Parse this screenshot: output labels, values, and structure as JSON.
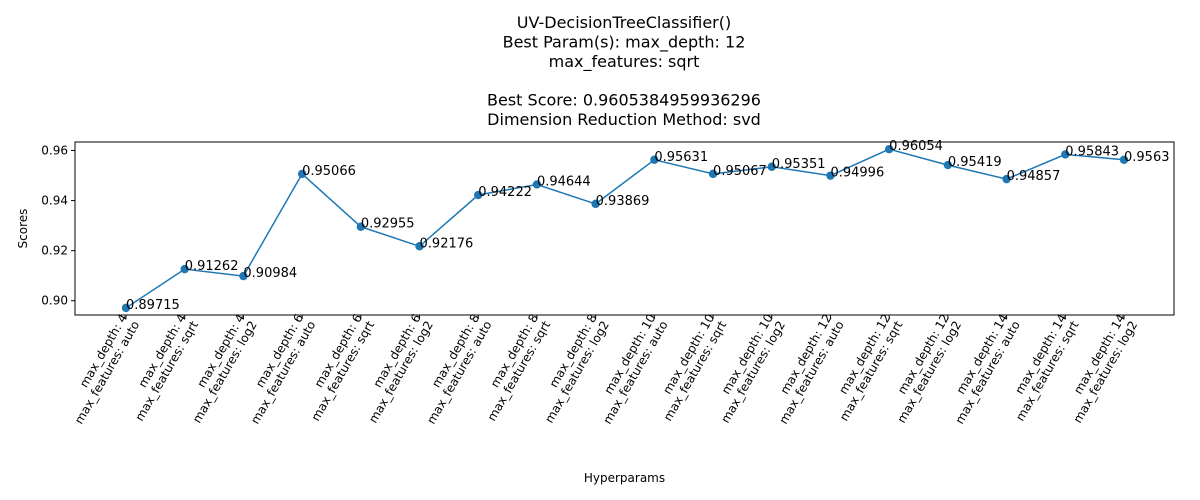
{
  "chart_data": {
    "type": "line",
    "title_lines": [
      "UV-DecisionTreeClassifier()",
      "Best Param(s): max_depth: 12",
      "max_features: sqrt",
      "",
      "Best Score: 0.9605384959936296",
      "Dimension Reduction Method: svd"
    ],
    "xlabel": "Hyperparams",
    "ylabel": "Scores",
    "categories": [
      [
        "max_depth: 4",
        "max_features: auto"
      ],
      [
        "max_depth: 4",
        "max_features: sqrt"
      ],
      [
        "max_depth: 4",
        "max_features: log2"
      ],
      [
        "max_depth: 6",
        "max_features: auto"
      ],
      [
        "max_depth: 6",
        "max_features: sqrt"
      ],
      [
        "max_depth: 6",
        "max_features: log2"
      ],
      [
        "max_depth: 8",
        "max_features: auto"
      ],
      [
        "max_depth: 8",
        "max_features: sqrt"
      ],
      [
        "max_depth: 8",
        "max_features: log2"
      ],
      [
        "max_depth: 10",
        "max_features: auto"
      ],
      [
        "max_depth: 10",
        "max_features: sqrt"
      ],
      [
        "max_depth: 10",
        "max_features: log2"
      ],
      [
        "max_depth: 12",
        "max_features: auto"
      ],
      [
        "max_depth: 12",
        "max_features: sqrt"
      ],
      [
        "max_depth: 12",
        "max_features: log2"
      ],
      [
        "max_depth: 14",
        "max_features: auto"
      ],
      [
        "max_depth: 14",
        "max_features: sqrt"
      ],
      [
        "max_depth: 14",
        "max_features: log2"
      ]
    ],
    "values": [
      0.89715,
      0.91262,
      0.90984,
      0.95066,
      0.92955,
      0.92176,
      0.94222,
      0.94644,
      0.93869,
      0.95631,
      0.95067,
      0.95351,
      0.94996,
      0.96054,
      0.95419,
      0.94857,
      0.95843,
      0.9563
    ],
    "labels": [
      "0.89715",
      "0.91262",
      "0.90984",
      "0.95066",
      "0.92955",
      "0.92176",
      "0.94222",
      "0.94644",
      "0.93869",
      "0.95631",
      "0.95067",
      "0.95351",
      "0.94996",
      "0.96054",
      "0.95419",
      "0.94857",
      "0.95843",
      "0.9563"
    ],
    "yticks": [
      0.9,
      0.92,
      0.94,
      0.96
    ],
    "ytick_labels": [
      "0.90",
      "0.92",
      "0.94",
      "0.96"
    ],
    "ylim": [
      0.8943,
      0.9634
    ],
    "grid": false,
    "line_color": "#1f77b4",
    "marker_color": "#1f77b4"
  }
}
